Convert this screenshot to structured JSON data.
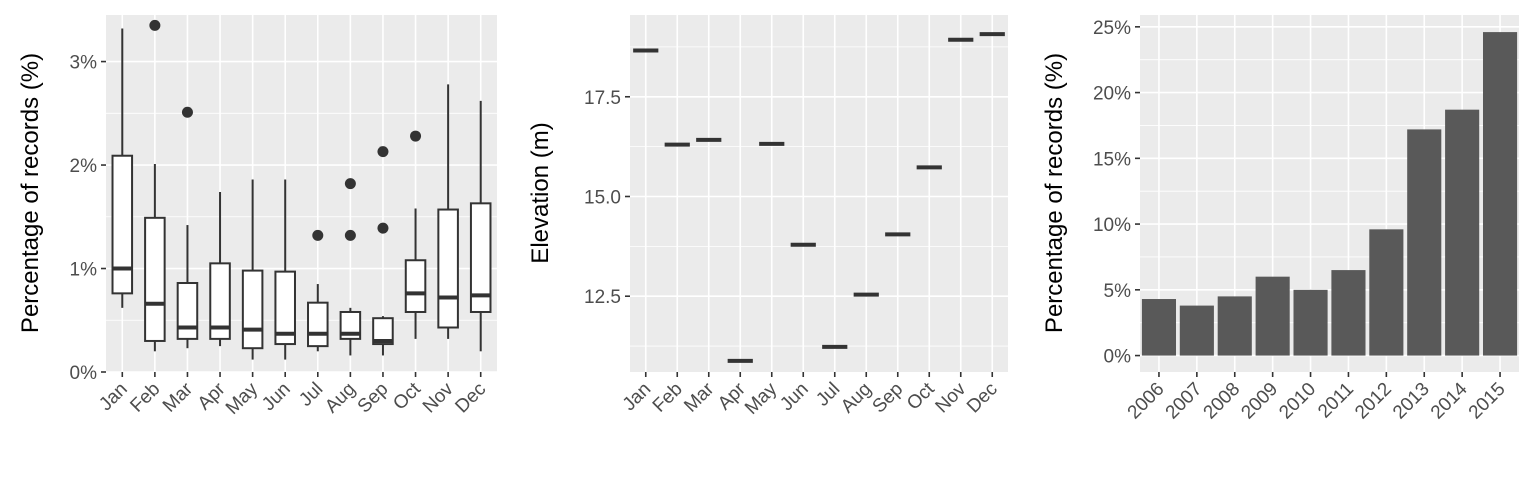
{
  "chart_data": [
    {
      "type": "boxplot",
      "title": "",
      "xlabel": "",
      "ylabel": "Percentage of records (%)",
      "ylim": [
        0,
        3.45
      ],
      "yticks": [
        {
          "value": 0,
          "label": "0%"
        },
        {
          "value": 1,
          "label": "1%"
        },
        {
          "value": 2,
          "label": "2%"
        },
        {
          "value": 3,
          "label": "3%"
        }
      ],
      "grid": true,
      "categories": [
        "Jan",
        "Feb",
        "Mar",
        "Apr",
        "May",
        "Jun",
        "Jul",
        "Aug",
        "Sep",
        "Oct",
        "Nov",
        "Dec"
      ],
      "boxes": [
        {
          "min": 0.62,
          "q1": 0.76,
          "median": 1.0,
          "q3": 2.09,
          "max": 3.32,
          "outliers": []
        },
        {
          "min": 0.2,
          "q1": 0.3,
          "median": 0.66,
          "q3": 1.49,
          "max": 2.01,
          "outliers": [
            3.35
          ]
        },
        {
          "min": 0.23,
          "q1": 0.32,
          "median": 0.43,
          "q3": 0.86,
          "max": 1.42,
          "outliers": [
            2.51
          ]
        },
        {
          "min": 0.25,
          "q1": 0.32,
          "median": 0.43,
          "q3": 1.05,
          "max": 1.74,
          "outliers": []
        },
        {
          "min": 0.12,
          "q1": 0.23,
          "median": 0.41,
          "q3": 0.98,
          "max": 1.86,
          "outliers": []
        },
        {
          "min": 0.12,
          "q1": 0.27,
          "median": 0.37,
          "q3": 0.97,
          "max": 1.86,
          "outliers": []
        },
        {
          "min": 0.2,
          "q1": 0.25,
          "median": 0.37,
          "q3": 0.67,
          "max": 0.85,
          "outliers": [
            1.32
          ]
        },
        {
          "min": 0.16,
          "q1": 0.32,
          "median": 0.37,
          "q3": 0.58,
          "max": 0.62,
          "outliers": [
            1.32,
            1.82
          ]
        },
        {
          "min": 0.16,
          "q1": 0.27,
          "median": 0.3,
          "q3": 0.52,
          "max": 0.54,
          "outliers": [
            1.39,
            2.13
          ]
        },
        {
          "min": 0.32,
          "q1": 0.58,
          "median": 0.76,
          "q3": 1.08,
          "max": 1.58,
          "outliers": [
            2.28
          ]
        },
        {
          "min": 0.32,
          "q1": 0.43,
          "median": 0.72,
          "q3": 1.57,
          "max": 2.78,
          "outliers": []
        },
        {
          "min": 0.2,
          "q1": 0.58,
          "median": 0.74,
          "q3": 1.63,
          "max": 2.62,
          "outliers": []
        }
      ]
    },
    {
      "type": "crossbar",
      "title": "",
      "xlabel": "",
      "ylabel": "Elevation (m)",
      "ylim": [
        10.6,
        19.55
      ],
      "yticks": [
        {
          "value": 12.5,
          "label": "12.5"
        },
        {
          "value": 15.0,
          "label": "15.0"
        },
        {
          "value": 17.5,
          "label": "17.5"
        }
      ],
      "grid": true,
      "categories": [
        "Jan",
        "Feb",
        "Mar",
        "Apr",
        "May",
        "Jun",
        "Jul",
        "Aug",
        "Sep",
        "Oct",
        "Nov",
        "Dec"
      ],
      "values": [
        18.66,
        16.3,
        16.42,
        10.88,
        16.32,
        13.79,
        11.23,
        12.54,
        14.05,
        15.73,
        18.93,
        19.07
      ]
    },
    {
      "type": "bar",
      "title": "",
      "xlabel": "",
      "ylabel": "Percentage of records (%)",
      "ylim": [
        -1.25,
        25.9
      ],
      "yticks": [
        {
          "value": 0,
          "label": "0%"
        },
        {
          "value": 5,
          "label": "5%"
        },
        {
          "value": 10,
          "label": "10%"
        },
        {
          "value": 15,
          "label": "15%"
        },
        {
          "value": 20,
          "label": "20%"
        },
        {
          "value": 25,
          "label": "25%"
        }
      ],
      "grid": true,
      "categories": [
        "2006",
        "2007",
        "2008",
        "2009",
        "2010",
        "2011",
        "2012",
        "2013",
        "2014",
        "2015"
      ],
      "values": [
        4.3,
        3.8,
        4.5,
        6.0,
        5.0,
        6.5,
        9.6,
        17.2,
        18.7,
        24.6
      ]
    }
  ]
}
